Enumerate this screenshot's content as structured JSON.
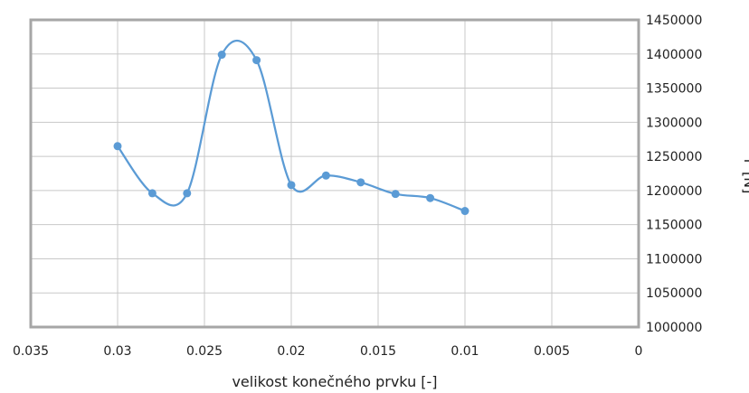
{
  "chart_data": {
    "type": "line",
    "smooth": true,
    "xlabel": "velikost konečného prvku [-]",
    "ylabel": "F [N]",
    "x_reversed": true,
    "xlim": [
      0,
      0.035
    ],
    "ylim": [
      1000000,
      1450000
    ],
    "grid": true,
    "legend": "none",
    "x_ticks": [
      "0.035",
      "0.03",
      "0.025",
      "0.02",
      "0.015",
      "0.01",
      "0.005",
      "0"
    ],
    "y_ticks": [
      "1000000",
      "1050000",
      "1100000",
      "1150000",
      "1200000",
      "1250000",
      "1300000",
      "1350000",
      "1400000",
      "1450000"
    ],
    "series": [
      {
        "color": "#5b9bd5",
        "x": [
          0.03,
          0.028,
          0.026,
          0.024,
          0.022,
          0.02,
          0.018,
          0.016,
          0.014,
          0.012,
          0.01
        ],
        "y": [
          1265000,
          1196000,
          1196000,
          1399000,
          1391000,
          1208000,
          1222000,
          1212000,
          1195000,
          1189000,
          1170000
        ]
      }
    ]
  }
}
